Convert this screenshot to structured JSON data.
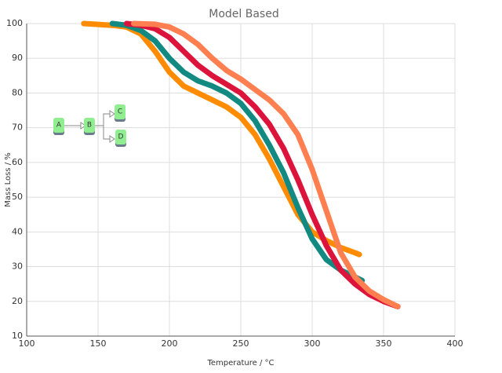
{
  "chart_data": {
    "type": "line",
    "title": "Model Based",
    "x_label": "Temperature / °C",
    "y_label": "Mass Loss / %",
    "xlim": [
      100,
      400
    ],
    "xticks": [
      100,
      150,
      200,
      250,
      300,
      350,
      400
    ],
    "ylim": [
      10,
      100
    ],
    "yticks": [
      10,
      20,
      30,
      40,
      50,
      60,
      70,
      80,
      90,
      100
    ],
    "grid": true,
    "series": [
      {
        "color": "#ff8c00",
        "x": [
          140,
          160,
          170,
          180,
          190,
          200,
          210,
          220,
          230,
          240,
          250,
          260,
          270,
          280,
          290,
          300,
          310,
          320,
          330,
          333
        ],
        "values": [
          100,
          99.5,
          99,
          97,
          92,
          86,
          82,
          80,
          78,
          76,
          73,
          68,
          61,
          53,
          45,
          40,
          37.5,
          35.5,
          34,
          33.5
        ]
      },
      {
        "color": "#128a82",
        "x": [
          160,
          170,
          180,
          190,
          200,
          210,
          220,
          230,
          240,
          250,
          260,
          270,
          280,
          290,
          300,
          310,
          320,
          330,
          335
        ],
        "values": [
          100,
          99.5,
          98,
          95,
          90,
          86,
          83.5,
          82,
          80,
          77,
          72,
          65,
          57,
          47,
          38,
          32,
          29,
          27,
          26
        ]
      },
      {
        "color": "#dc143c",
        "x": [
          170,
          180,
          190,
          200,
          210,
          220,
          230,
          240,
          250,
          260,
          270,
          280,
          290,
          300,
          310,
          320,
          330,
          340,
          350,
          360
        ],
        "values": [
          100,
          99.5,
          98.5,
          96,
          92,
          88,
          85,
          82.5,
          80,
          76,
          71,
          64,
          55,
          45,
          36,
          29,
          25,
          22,
          20,
          18.5
        ]
      },
      {
        "color": "#ff7f50",
        "x": [
          175,
          190,
          200,
          210,
          220,
          230,
          240,
          250,
          260,
          270,
          280,
          290,
          300,
          310,
          320,
          330,
          340,
          350,
          360
        ],
        "values": [
          100,
          99.8,
          99,
          97,
          94,
          90,
          86.5,
          84,
          81,
          78,
          74,
          68,
          58,
          46,
          34,
          27,
          23,
          20.5,
          18.5
        ]
      }
    ],
    "inset": {
      "nodes": [
        "A",
        "B",
        "C",
        "D"
      ]
    }
  }
}
